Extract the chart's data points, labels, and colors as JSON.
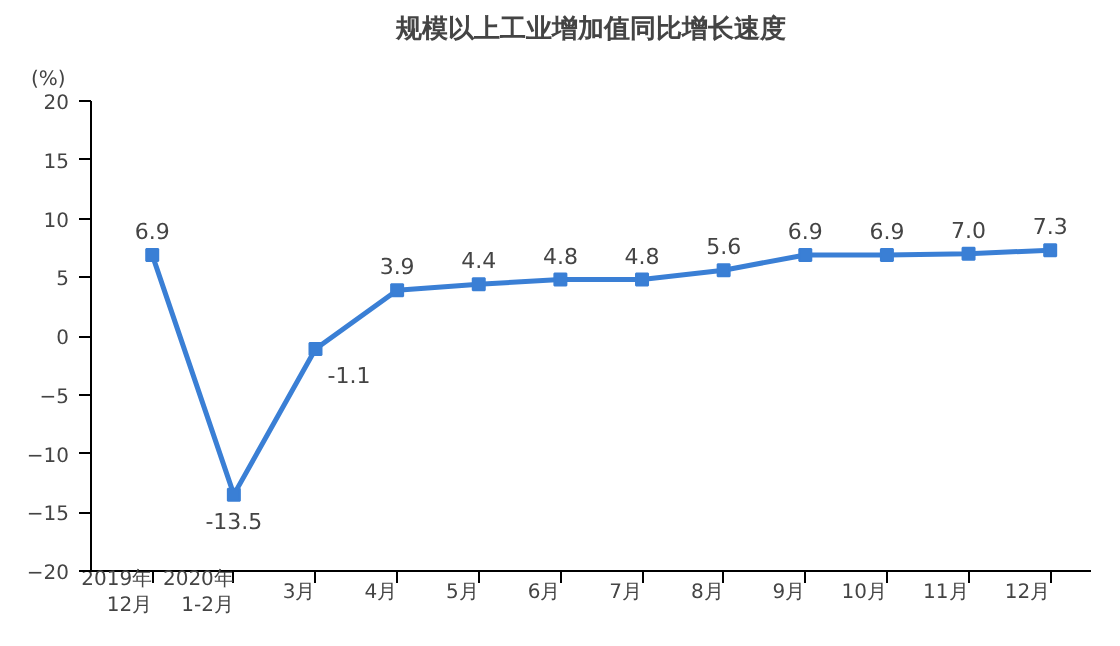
{
  "chart_data": {
    "type": "line",
    "title": "规模以上工业增加值同比增长速度",
    "ylabel": "(%)",
    "categories": [
      "2019年\n12月",
      "2020年\n1-2月",
      "3月",
      "4月",
      "5月",
      "6月",
      "7月",
      "8月",
      "9月",
      "10月",
      "11月",
      "12月"
    ],
    "series": [
      {
        "color": "#3a7fd5",
        "values": [
          6.9,
          -13.5,
          -1.1,
          3.9,
          4.4,
          4.8,
          4.8,
          5.6,
          6.9,
          6.9,
          7.0,
          7.3
        ],
        "value_labels": [
          "6.9",
          "-13.5",
          "-1.1",
          "3.9",
          "4.4",
          "4.8",
          "4.8",
          "5.6",
          "6.9",
          "6.9",
          "7.0",
          "7.3"
        ]
      }
    ],
    "ylim": [
      -20,
      20
    ],
    "yticks": [
      -20,
      -15,
      -10,
      -5,
      0,
      5,
      10,
      15,
      20
    ],
    "marker": "square",
    "line_style": "solid",
    "grid": false
  }
}
